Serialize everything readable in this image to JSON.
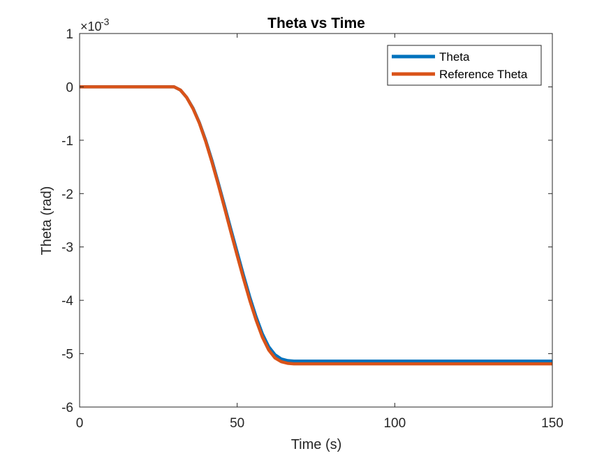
{
  "chart_data": {
    "type": "line",
    "title": "Theta vs Time",
    "xlabel": "Time (s)",
    "ylabel": "Theta (rad)",
    "xlim": [
      0,
      150
    ],
    "ylim": [
      -6,
      1
    ],
    "xticks": [
      0,
      50,
      100,
      150
    ],
    "yticks": [
      -6,
      -5,
      -4,
      -3,
      -2,
      -1,
      0,
      1
    ],
    "xtick_labels": [
      "0",
      "50",
      "100",
      "150"
    ],
    "ytick_labels": [
      "-6",
      "-5",
      "-4",
      "-3",
      "-2",
      "-1",
      "0",
      "1"
    ],
    "y_exponent_base": "×10",
    "y_exponent_power": "-3",
    "grid": false,
    "legend_position": "top-right",
    "series": [
      {
        "name": "Theta",
        "color": "#0072BD",
        "x": [
          0,
          10,
          20,
          30,
          32,
          34,
          36,
          38,
          40,
          42,
          44,
          46,
          48,
          50,
          52,
          54,
          56,
          58,
          60,
          62,
          64,
          66,
          68,
          70,
          80,
          100,
          120,
          150
        ],
        "y": [
          0,
          0,
          0,
          0,
          -0.06,
          -0.2,
          -0.4,
          -0.67,
          -1.0,
          -1.38,
          -1.8,
          -2.23,
          -2.67,
          -3.1,
          -3.53,
          -3.94,
          -4.31,
          -4.63,
          -4.87,
          -5.02,
          -5.1,
          -5.13,
          -5.14,
          -5.14,
          -5.14,
          -5.14,
          -5.14,
          -5.14
        ]
      },
      {
        "name": "Reference Theta",
        "color": "#D95319",
        "x": [
          0,
          10,
          20,
          30,
          32,
          34,
          36,
          38,
          40,
          42,
          44,
          46,
          48,
          50,
          52,
          54,
          56,
          58,
          60,
          62,
          64,
          66,
          68,
          70,
          80,
          100,
          120,
          150
        ],
        "y": [
          0,
          0,
          0,
          0,
          -0.06,
          -0.2,
          -0.41,
          -0.68,
          -1.02,
          -1.41,
          -1.83,
          -2.27,
          -2.72,
          -3.16,
          -3.59,
          -4.0,
          -4.37,
          -4.69,
          -4.93,
          -5.08,
          -5.15,
          -5.18,
          -5.19,
          -5.19,
          -5.19,
          -5.19,
          -5.19,
          -5.19
        ]
      }
    ]
  }
}
